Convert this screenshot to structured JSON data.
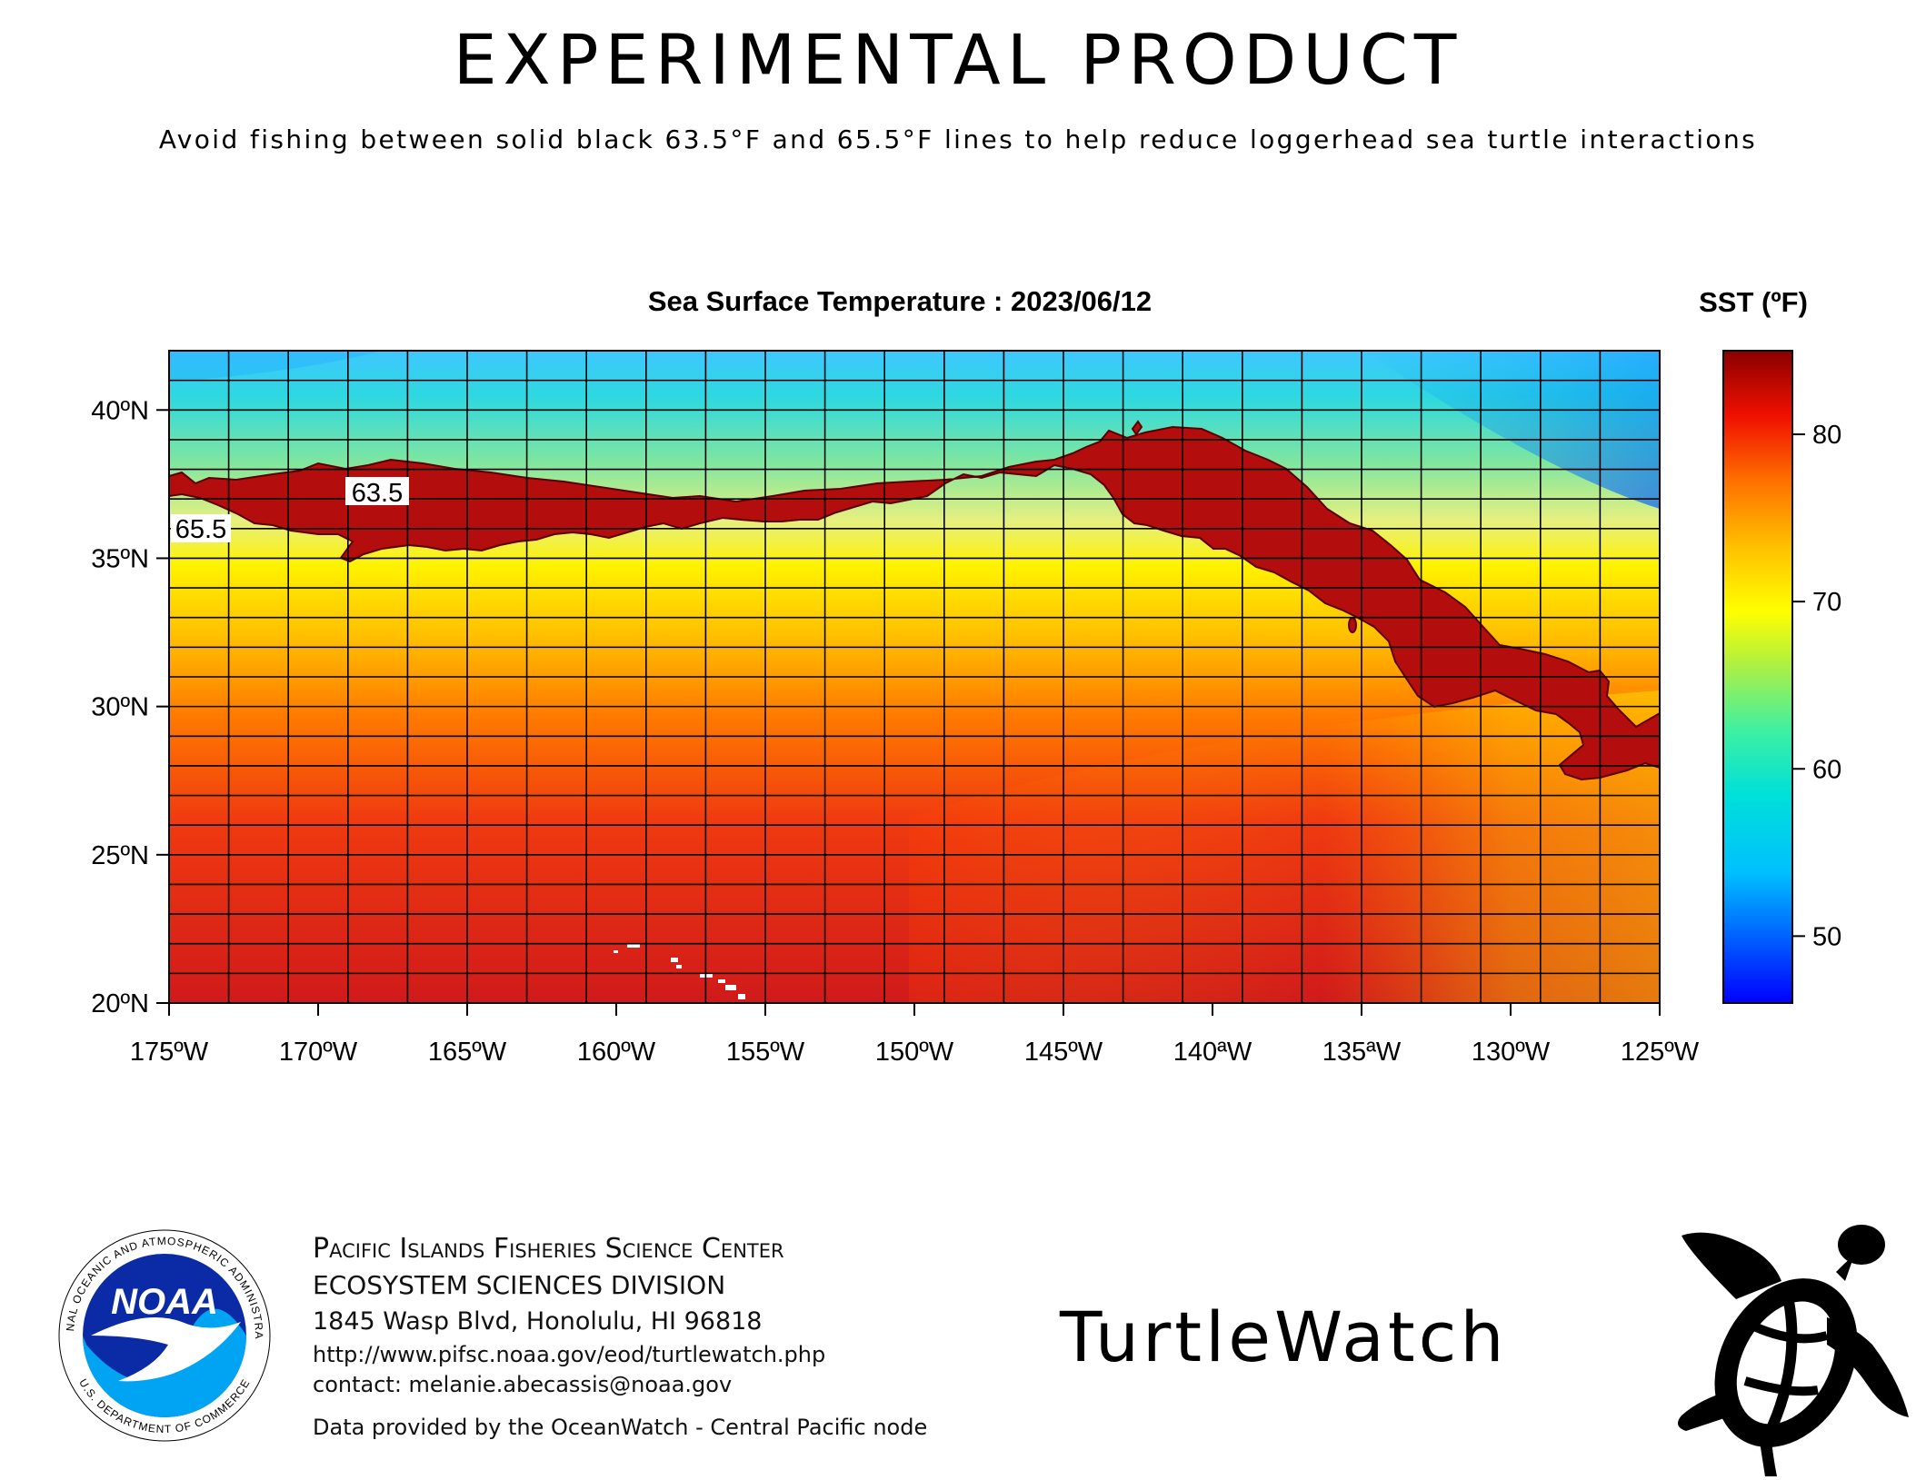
{
  "header": {
    "title": "EXPERIMENTAL PRODUCT",
    "subtitle": "Avoid fishing between solid black 63.5°F and 65.5°F lines to help reduce loggerhead sea turtle interactions"
  },
  "map": {
    "title": "Sea Surface Temperature : 2023/06/12",
    "x_ticks": [
      "175ºW",
      "170ºW",
      "165ºW",
      "160ºW",
      "155ºW",
      "150ºW",
      "145ºW",
      "140ªW",
      "135ªW",
      "130ºW",
      "125ºW"
    ],
    "y_ticks": [
      "40ºN",
      "35ºN",
      "30ºN",
      "25ºN",
      "20ºN"
    ],
    "lon_range": [
      -175,
      -125
    ],
    "lat_range": [
      20,
      42
    ],
    "contour_labels": [
      "63.5",
      "65.5"
    ],
    "band_color": "#b30d0d",
    "zone_color": "#ffffff"
  },
  "colorbar": {
    "title": "SST (ºF)",
    "ticks": [
      "80",
      "70",
      "60",
      "50"
    ],
    "range": [
      46,
      85
    ],
    "colors": [
      "#0000ff",
      "#00a6ff",
      "#00e0e0",
      "#39f0a0",
      "#c8f030",
      "#ffff00",
      "#ffc000",
      "#ff8000",
      "#ff2000",
      "#d00000",
      "#8a0000"
    ]
  },
  "footer": {
    "org_line1": "Pacific Islands Fisheries Science Center",
    "org_line2": "ECOSYSTEM SCIENCES DIVISION",
    "address": "1845 Wasp Blvd, Honolulu, HI 96818",
    "url": "http://www.pifsc.noaa.gov/eod/turtlewatch.php",
    "contact": "contact: melanie.abecassis@noaa.gov",
    "credit": "Data provided by the OceanWatch - Central Pacific node",
    "app_name": "TurtleWatch"
  },
  "logo": {
    "wordmark": "NOAA",
    "ring_text": "NATIONAL OCEANIC AND ATMOSPHERIC ADMINISTRATION",
    "ring_text_bottom": "U.S. DEPARTMENT OF COMMERCE"
  },
  "icons": [
    "noaa-logo-icon",
    "sea-turtle-icon"
  ]
}
